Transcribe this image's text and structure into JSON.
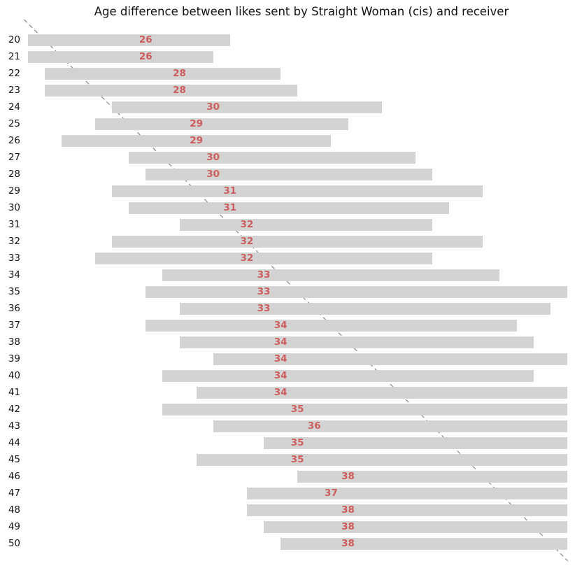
{
  "chart_data": {
    "type": "bar",
    "orientation": "horizontal",
    "title": "Age difference between likes sent by Straight Woman (cis) and receiver",
    "categories": [
      20,
      21,
      22,
      23,
      24,
      25,
      26,
      27,
      28,
      29,
      30,
      31,
      32,
      33,
      34,
      35,
      36,
      37,
      38,
      39,
      40,
      41,
      42,
      43,
      44,
      45,
      46,
      47,
      48,
      49,
      50
    ],
    "series": [
      {
        "name": "liked_age_range_start",
        "values": [
          19,
          19,
          20,
          20,
          24,
          23,
          21,
          25,
          26,
          24,
          25,
          28,
          24,
          23,
          27,
          26,
          28,
          26,
          28,
          30,
          27,
          29,
          27,
          30,
          33,
          29,
          35,
          32,
          32,
          33,
          34
        ]
      },
      {
        "name": "liked_age_range_end",
        "values": [
          31,
          30,
          34,
          35,
          40,
          38,
          37,
          42,
          43,
          46,
          44,
          43,
          46,
          43,
          47,
          51,
          50,
          48,
          49,
          51,
          49,
          51,
          51,
          51,
          51,
          51,
          51,
          51,
          51,
          51,
          51
        ]
      },
      {
        "name": "median_liked_age",
        "values": [
          26,
          26,
          28,
          28,
          30,
          29,
          29,
          30,
          30,
          31,
          31,
          32,
          32,
          32,
          33,
          33,
          33,
          34,
          34,
          34,
          34,
          34,
          35,
          36,
          35,
          35,
          38,
          37,
          38,
          38,
          38
        ]
      }
    ],
    "xlabel": "",
    "ylabel": "",
    "xlim": [
      17.36,
      51.46
    ],
    "grid": false,
    "legend": false,
    "reference_line": {
      "kind": "identity y=x",
      "style": "dashed",
      "color": "#7f7f7f"
    },
    "colors": {
      "bar": "#d3d3d3",
      "median_label": "#cd5c5c",
      "text": "#141414",
      "reference_line": "#7f7f7f",
      "background": "#ffffff"
    }
  }
}
